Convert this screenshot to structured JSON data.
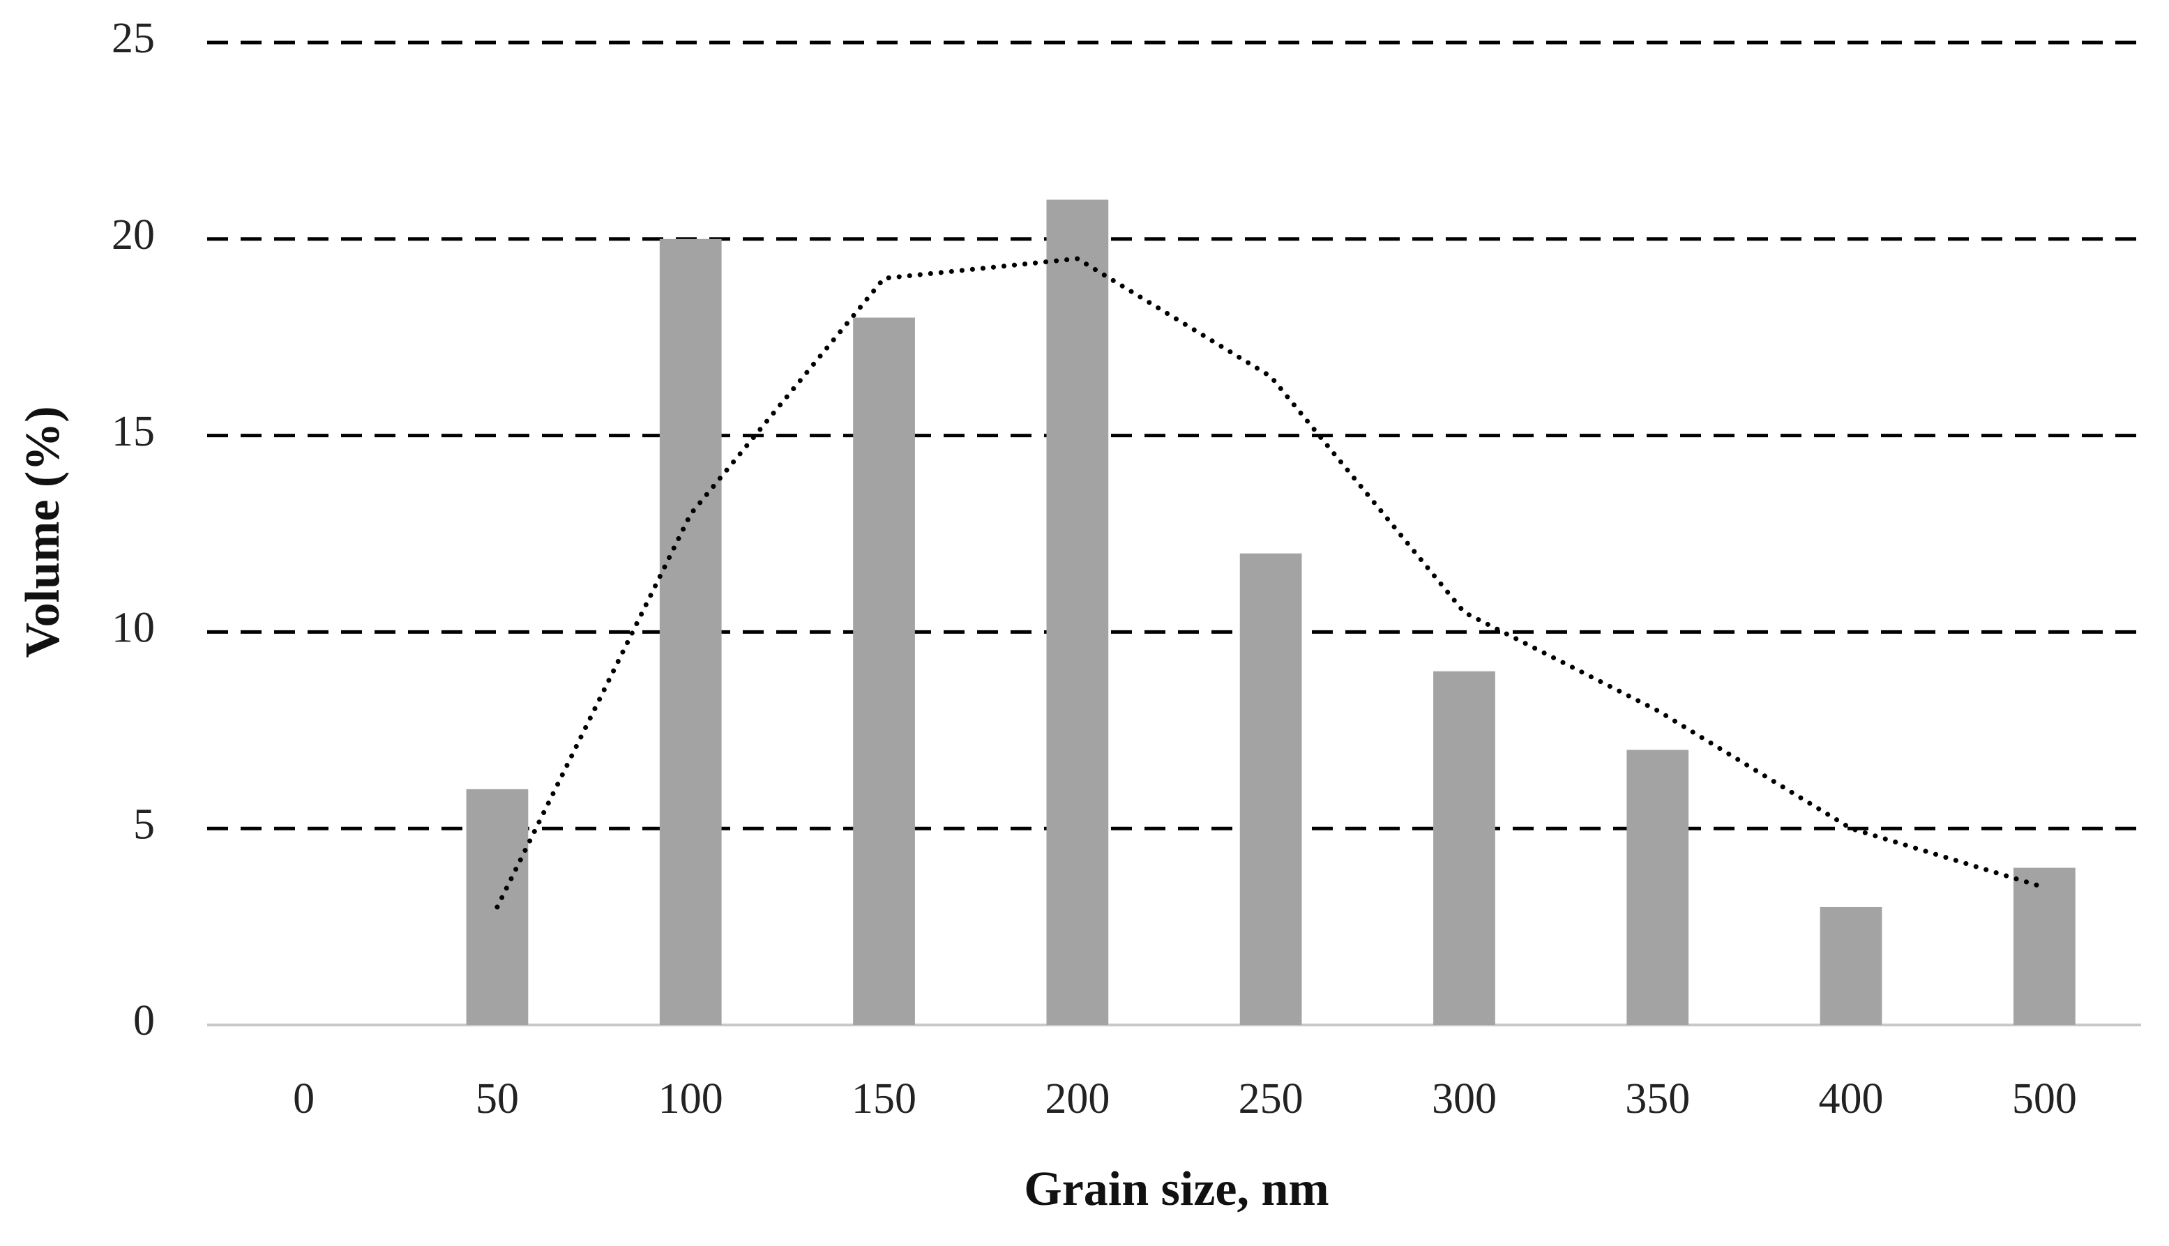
{
  "chart_data": {
    "type": "bar",
    "xlabel": "Grain size, nm",
    "ylabel": "Volume (%)",
    "categories": [
      "0",
      "50",
      "100",
      "150",
      "200",
      "250",
      "300",
      "350",
      "400",
      "500"
    ],
    "series": [
      {
        "type": "bar",
        "color": "#a3a3a3",
        "values": [
          0,
          6,
          20,
          18,
          21,
          12,
          9,
          7,
          3,
          4
        ]
      },
      {
        "type": "line",
        "color": "#000000",
        "dotted": true,
        "values": [
          null,
          3,
          13,
          19,
          19.5,
          16.5,
          10.5,
          8,
          5,
          3.5
        ]
      }
    ],
    "ylim": [
      0,
      25
    ],
    "yticks": [
      0,
      5,
      10,
      15,
      20,
      25
    ],
    "grid": true
  }
}
